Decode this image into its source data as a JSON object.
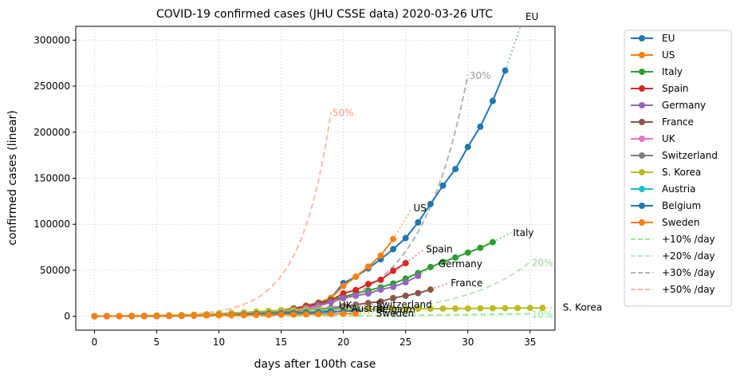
{
  "chart_data": {
    "type": "line",
    "title": "COVID-19 confirmed cases (JHU CSSE data) 2020-03-26 UTC",
    "xlabel": "days after 100th case",
    "ylabel": "confirmed cases (linear)",
    "xlim": [
      -1.5,
      37
    ],
    "ylim": [
      -15000,
      315000
    ],
    "xticks": [
      0,
      5,
      10,
      15,
      20,
      25,
      30,
      35
    ],
    "yticks": [
      0,
      50000,
      100000,
      150000,
      200000,
      250000,
      300000
    ],
    "grid": true,
    "legend_position": "outside-right",
    "series": [
      {
        "name": "EU",
        "color": "#1f77b4",
        "end_label": "EU",
        "values": [
          100,
          130,
          170,
          220,
          290,
          380,
          500,
          650,
          850,
          1100,
          1500,
          2000,
          2700,
          3600,
          4800,
          6400,
          8500,
          11300,
          15000,
          20000,
          36000,
          43000,
          52000,
          62000,
          73000,
          85000,
          102000,
          122000,
          142000,
          160000,
          184000,
          206000,
          234000,
          267000
        ]
      },
      {
        "name": "US",
        "color": "#ff7f0e",
        "end_label": "US",
        "values": [
          100,
          130,
          170,
          220,
          290,
          380,
          500,
          650,
          850,
          1100,
          1500,
          2000,
          2700,
          3500,
          4600,
          6400,
          8600,
          11600,
          15000,
          20000,
          33000,
          43000,
          54000,
          66000,
          84000
        ]
      },
      {
        "name": "Italy",
        "color": "#2ca02c",
        "end_label": "Italy",
        "values": [
          100,
          130,
          170,
          220,
          290,
          380,
          500,
          650,
          850,
          1100,
          1500,
          2000,
          2700,
          3600,
          4800,
          6400,
          8500,
          11000,
          14500,
          18000,
          21000,
          25000,
          28000,
          31500,
          35700,
          41000,
          47000,
          53500,
          59100,
          63900,
          69200,
          74400,
          80600
        ]
      },
      {
        "name": "Spain",
        "color": "#d62728",
        "end_label": "Spain",
        "values": [
          100,
          130,
          170,
          220,
          290,
          380,
          500,
          650,
          850,
          1100,
          1700,
          2200,
          3000,
          4300,
          5200,
          6300,
          8000,
          11000,
          13700,
          17100,
          25000,
          28500,
          35100,
          39700,
          49500,
          57800
        ]
      },
      {
        "name": "Germany",
        "color": "#9467bd",
        "end_label": "Germany",
        "values": [
          100,
          130,
          170,
          220,
          290,
          380,
          500,
          650,
          850,
          1100,
          1500,
          1900,
          2700,
          3600,
          4600,
          5800,
          7200,
          9300,
          12300,
          15300,
          19800,
          22300,
          24800,
          29000,
          32000,
          37000,
          43900
        ]
      },
      {
        "name": "France",
        "color": "#8c564b",
        "end_label": "France",
        "values": [
          100,
          130,
          170,
          220,
          290,
          380,
          500,
          650,
          850,
          1100,
          1400,
          1800,
          2300,
          2900,
          3600,
          4500,
          5400,
          6600,
          7700,
          9100,
          11000,
          12600,
          14500,
          16100,
          19900,
          22300,
          25200,
          29100
        ]
      },
      {
        "name": "UK",
        "color": "#e377c2",
        "end_label": "UK",
        "values": [
          100,
          130,
          170,
          220,
          290,
          380,
          500,
          650,
          850,
          1100,
          1400,
          1900,
          2600,
          3200,
          3900,
          5000,
          6700,
          8100,
          9500
        ]
      },
      {
        "name": "Switzerland",
        "color": "#7f7f7f",
        "end_label": "Switzerland",
        "values": [
          100,
          130,
          170,
          220,
          290,
          380,
          500,
          650,
          850,
          1100,
          1400,
          2200,
          2700,
          3000,
          4200,
          5300,
          6100,
          7000,
          8000,
          8800,
          9800,
          10900
        ]
      },
      {
        "name": "S. Korea",
        "color": "#bcbd22",
        "end_label": "S. Korea",
        "values": [
          100,
          200,
          350,
          550,
          750,
          950,
          1250,
          1500,
          1800,
          2300,
          3000,
          3700,
          4300,
          5100,
          5900,
          6300,
          6800,
          7100,
          7300,
          7500,
          7600,
          7700,
          7800,
          7900,
          8000,
          8100,
          8200,
          8300,
          8400,
          8500,
          8600,
          8700,
          8800,
          8900,
          9000,
          9100,
          9200
        ]
      },
      {
        "name": "Austria",
        "color": "#17becf",
        "end_label": "Austria",
        "values": [
          100,
          130,
          170,
          220,
          290,
          380,
          500,
          650,
          850,
          1100,
          1300,
          1500,
          1800,
          2200,
          2600,
          3200,
          3700,
          4500,
          5300,
          6400
        ]
      },
      {
        "name": "Belgium",
        "color": "#1f77b4",
        "end_label": "Belgium",
        "values": [
          100,
          130,
          170,
          220,
          290,
          380,
          500,
          650,
          850,
          1100,
          1300,
          1500,
          1800,
          2200,
          2600,
          3000,
          3400,
          3800,
          4300,
          4900,
          5400,
          6200
        ]
      },
      {
        "name": "Sweden",
        "color": "#ff7f0e",
        "end_label": "Sweden",
        "values": [
          100,
          130,
          170,
          220,
          290,
          380,
          500,
          650,
          850,
          1000,
          1050,
          1150,
          1250,
          1400,
          1600,
          1800,
          2000,
          2200,
          2400,
          2600,
          2800,
          3000
        ]
      }
    ],
    "guides": [
      {
        "name": "+10% /day",
        "color": "#90ee90",
        "opacity": 1.0,
        "rate": 0.1,
        "x_end": 35,
        "end_label": "10%"
      },
      {
        "name": "+20% /day",
        "color": "#2ca02c",
        "opacity": 0.3,
        "rate": 0.2,
        "x_end": 35,
        "end_label": "20%"
      },
      {
        "name": "+30% /day",
        "color": "#7f7f7f",
        "opacity": 0.6,
        "rate": 0.3,
        "x_end": 30,
        "end_label": "30%"
      },
      {
        "name": "+50% /day",
        "color": "#ff6347",
        "opacity": 0.45,
        "rate": 0.5,
        "x_end": 19,
        "end_label": "50%"
      }
    ],
    "guide_start_value": 100
  }
}
